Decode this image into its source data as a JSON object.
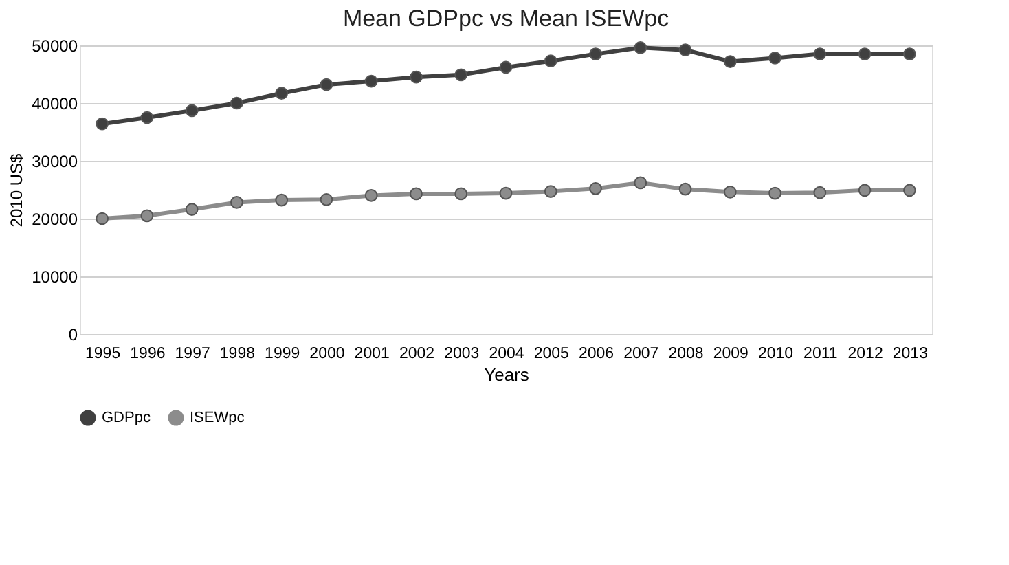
{
  "chart_data": {
    "type": "line",
    "title": "Mean GDPpc vs Mean ISEWpc",
    "xlabel": "Years",
    "ylabel": "2010 US$",
    "categories": [
      "1995",
      "1996",
      "1997",
      "1998",
      "1999",
      "2000",
      "2001",
      "2002",
      "2003",
      "2004",
      "2005",
      "2006",
      "2007",
      "2008",
      "2009",
      "2010",
      "2011",
      "2012",
      "2013"
    ],
    "series": [
      {
        "name": "GDPpc",
        "color": "#404040",
        "values": [
          36400,
          37500,
          38700,
          40000,
          41700,
          43200,
          43800,
          44500,
          44900,
          46200,
          47300,
          48500,
          49600,
          49200,
          47200,
          47800,
          48500,
          48500,
          48500
        ]
      },
      {
        "name": "ISEWpc",
        "color": "#8c8c8c",
        "values": [
          20000,
          20500,
          21600,
          22800,
          23200,
          23300,
          24000,
          24300,
          24300,
          24400,
          24700,
          25200,
          26200,
          25100,
          24600,
          24400,
          24500,
          24900,
          24900
        ]
      }
    ],
    "ylim": [
      0,
      50000
    ],
    "yticks": [
      0,
      10000,
      20000,
      30000,
      40000,
      50000
    ],
    "grid": "y",
    "legend": "bottom",
    "marker": "circle",
    "line_style": "solid"
  }
}
